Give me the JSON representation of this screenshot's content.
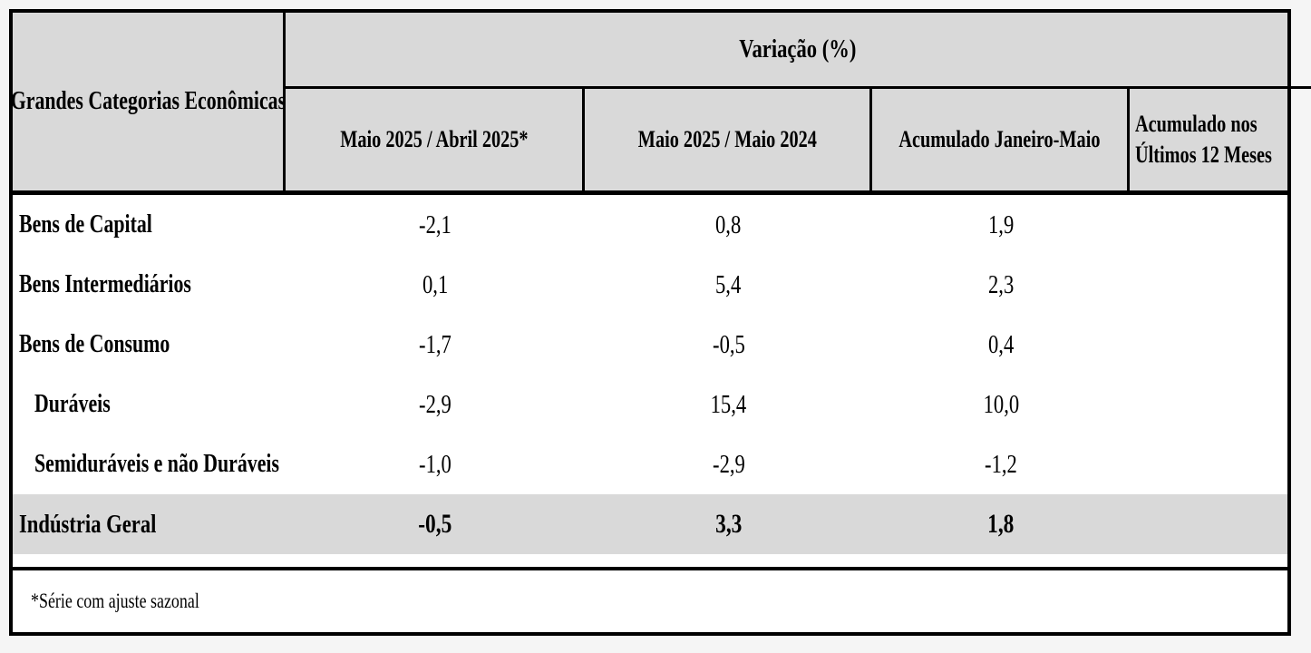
{
  "table": {
    "corner_header": "Grandes Categorias Econômicas",
    "group_header": "Variação (%)",
    "columns": [
      {
        "label": "Maio 2025 / Abril 2025*"
      },
      {
        "label": "Maio 2025 / Maio 2024"
      },
      {
        "label": "Acumulado Janeiro-Maio"
      },
      {
        "label_line1": "Acumulado nos",
        "label_line2": "Últimos 12 Meses",
        "clipped": true
      }
    ],
    "rows": [
      {
        "label": "Bens de Capital",
        "indent": false,
        "total": false,
        "values": [
          "-2,1",
          "0,8",
          "1,9"
        ]
      },
      {
        "label": "Bens Intermediários",
        "indent": false,
        "total": false,
        "values": [
          "0,1",
          "5,4",
          "2,3"
        ]
      },
      {
        "label": "Bens de Consumo",
        "indent": false,
        "total": false,
        "values": [
          "-1,7",
          "-0,5",
          "0,4"
        ]
      },
      {
        "label": "Duráveis",
        "indent": true,
        "total": false,
        "values": [
          "-2,9",
          "15,4",
          "10,0"
        ]
      },
      {
        "label": "Semiduráveis e não Duráveis",
        "indent": true,
        "total": false,
        "values": [
          "-1,0",
          "-2,9",
          "-1,2"
        ]
      },
      {
        "label": "Indústria Geral",
        "indent": false,
        "total": true,
        "values": [
          "-0,5",
          "3,3",
          "1,8"
        ]
      }
    ],
    "footnote": "*Série com ajuste sazonal"
  },
  "colors": {
    "header_bg": "#d9d9d9",
    "total_row_bg": "#d9d9d9",
    "body_bg": "#ffffff",
    "border": "#000000",
    "page_bg": "#f5f5f5"
  },
  "chart_data": {
    "type": "table",
    "title": "Variação (%)",
    "row_header": "Grandes Categorias Econômicas",
    "categories": [
      "Bens de Capital",
      "Bens Intermediários",
      "Bens de Consumo",
      "Duráveis",
      "Semiduráveis e não Duráveis",
      "Indústria Geral"
    ],
    "series": [
      {
        "name": "Maio 2025 / Abril 2025*",
        "values": [
          -2.1,
          0.1,
          -1.7,
          -2.9,
          -1.0,
          -0.5
        ]
      },
      {
        "name": "Maio 2025 / Maio 2024",
        "values": [
          0.8,
          5.4,
          -0.5,
          15.4,
          -2.9,
          3.3
        ]
      },
      {
        "name": "Acumulado Janeiro-Maio",
        "values": [
          1.9,
          2.3,
          0.4,
          10.0,
          -1.2,
          1.8
        ]
      }
    ],
    "note": "*Série com ajuste sazonal",
    "decimal_separator": ","
  }
}
